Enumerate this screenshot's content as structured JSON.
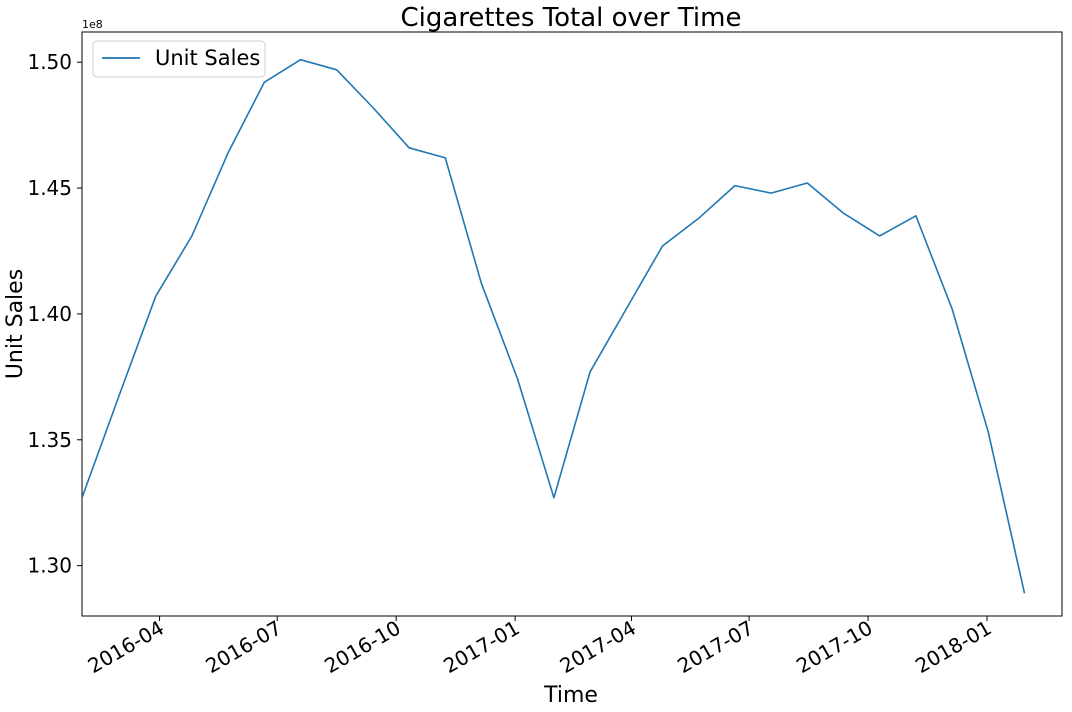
{
  "chart_data": {
    "type": "line",
    "title": "Cigarettes Total over Time",
    "xlabel": "Time",
    "ylabel": "Unit Sales",
    "y_offset_label": "1e8",
    "y_multiplier": 100000000,
    "xlim": [
      "2016-02-01",
      "2018-02-28"
    ],
    "ylim": [
      1.28,
      1.512
    ],
    "yticks": [
      1.3,
      1.35,
      1.4,
      1.45,
      1.5
    ],
    "ytick_labels": [
      "1.30",
      "1.35",
      "1.40",
      "1.45",
      "1.50"
    ],
    "xticks": [
      "2016-04-01",
      "2016-07-01",
      "2016-10-01",
      "2017-01-01",
      "2017-04-01",
      "2017-07-01",
      "2017-10-01",
      "2018-01-01"
    ],
    "xtick_labels": [
      "2016-04",
      "2016-07",
      "2016-10",
      "2017-01",
      "2017-04",
      "2017-07",
      "2017-10",
      "2018-01"
    ],
    "legend_position": "upper-left",
    "grid": false,
    "series": [
      {
        "name": "Unit Sales",
        "color": "#1f77b4",
        "points": [
          {
            "x": "2016-02-01",
            "y": 1.327
          },
          {
            "x": "2016-03-01",
            "y": 1.368
          },
          {
            "x": "2016-03-29",
            "y": 1.407
          },
          {
            "x": "2016-04-26",
            "y": 1.431
          },
          {
            "x": "2016-05-24",
            "y": 1.464
          },
          {
            "x": "2016-06-21",
            "y": 1.492
          },
          {
            "x": "2016-07-19",
            "y": 1.501
          },
          {
            "x": "2016-08-16",
            "y": 1.497
          },
          {
            "x": "2016-09-13",
            "y": 1.482
          },
          {
            "x": "2016-10-11",
            "y": 1.466
          },
          {
            "x": "2016-11-08",
            "y": 1.462
          },
          {
            "x": "2016-12-06",
            "y": 1.412
          },
          {
            "x": "2017-01-03",
            "y": 1.374
          },
          {
            "x": "2017-01-31",
            "y": 1.327
          },
          {
            "x": "2017-02-28",
            "y": 1.377
          },
          {
            "x": "2017-03-28",
            "y": 1.402
          },
          {
            "x": "2017-04-25",
            "y": 1.427
          },
          {
            "x": "2017-05-23",
            "y": 1.438
          },
          {
            "x": "2017-06-20",
            "y": 1.451
          },
          {
            "x": "2017-07-18",
            "y": 1.448
          },
          {
            "x": "2017-08-15",
            "y": 1.452
          },
          {
            "x": "2017-09-12",
            "y": 1.44
          },
          {
            "x": "2017-10-10",
            "y": 1.431
          },
          {
            "x": "2017-11-07",
            "y": 1.439
          },
          {
            "x": "2017-12-05",
            "y": 1.402
          },
          {
            "x": "2018-01-02",
            "y": 1.353
          },
          {
            "x": "2018-01-30",
            "y": 1.289
          }
        ]
      }
    ]
  }
}
